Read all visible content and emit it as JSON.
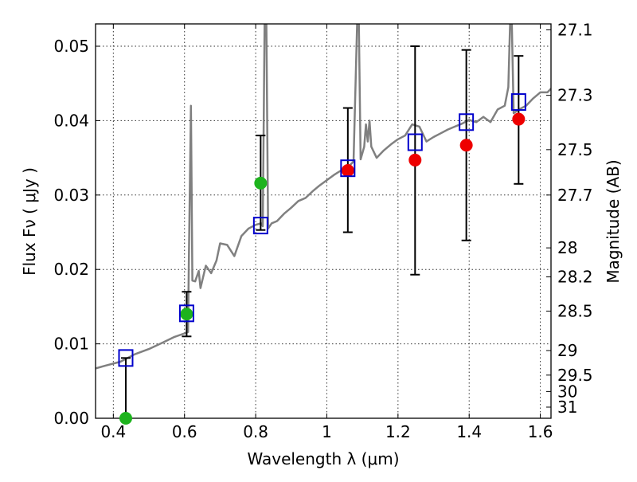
{
  "chart_data": {
    "type": "scatter",
    "xlabel": "Wavelength  λ (μm)",
    "ylabel": "Flux  Fν  ( μJy )",
    "y2label": "Magnitude (AB)",
    "xlim": [
      0.35,
      1.63
    ],
    "ylim": [
      0.0,
      0.053
    ],
    "grid": true,
    "x_ticks": [
      0.4,
      0.6,
      0.8,
      1.0,
      1.2,
      1.4,
      1.6
    ],
    "x_tick_labels": [
      "0.4",
      "0.6",
      "0.8",
      "1",
      "1.2",
      "1.4",
      "1.6"
    ],
    "y_ticks": [
      0.0,
      0.01,
      0.02,
      0.03,
      0.04,
      0.05
    ],
    "y_tick_labels": [
      "0.00",
      "0.01",
      "0.02",
      "0.03",
      "0.04",
      "0.05"
    ],
    "y2_ticks": [
      {
        "label": "27.1",
        "flux": 0.0522
      },
      {
        "label": "27.3",
        "flux": 0.0434
      },
      {
        "label": "27.5",
        "flux": 0.0361
      },
      {
        "label": "27.7",
        "flux": 0.03
      },
      {
        "label": "28",
        "flux": 0.0229
      },
      {
        "label": "28.2",
        "flux": 0.019
      },
      {
        "label": "28.5",
        "flux": 0.0144
      },
      {
        "label": "29",
        "flux": 0.0091
      },
      {
        "label": "29.5",
        "flux": 0.0058
      },
      {
        "label": "30",
        "flux": 0.0036
      },
      {
        "label": "31",
        "flux": 0.0015
      }
    ],
    "model_spectrum": {
      "color": "#808080",
      "points": [
        [
          0.35,
          0.0067
        ],
        [
          0.38,
          0.0071
        ],
        [
          0.42,
          0.0076
        ],
        [
          0.46,
          0.0086
        ],
        [
          0.5,
          0.0093
        ],
        [
          0.54,
          0.0102
        ],
        [
          0.57,
          0.0109
        ],
        [
          0.6,
          0.0114
        ],
        [
          0.61,
          0.0116
        ],
        [
          0.612,
          0.0205
        ],
        [
          0.618,
          0.042
        ],
        [
          0.622,
          0.0185
        ],
        [
          0.63,
          0.0184
        ],
        [
          0.64,
          0.0198
        ],
        [
          0.645,
          0.0175
        ],
        [
          0.66,
          0.0205
        ],
        [
          0.675,
          0.0195
        ],
        [
          0.69,
          0.0212
        ],
        [
          0.7,
          0.0235
        ],
        [
          0.72,
          0.0233
        ],
        [
          0.74,
          0.0218
        ],
        [
          0.76,
          0.0245
        ],
        [
          0.78,
          0.0255
        ],
        [
          0.8,
          0.026
        ],
        [
          0.815,
          0.0262
        ],
        [
          0.82,
          0.0258
        ],
        [
          0.825,
          0.053
        ],
        [
          0.83,
          0.0535
        ],
        [
          0.835,
          0.0255
        ],
        [
          0.845,
          0.0262
        ],
        [
          0.86,
          0.0265
        ],
        [
          0.88,
          0.0275
        ],
        [
          0.9,
          0.0283
        ],
        [
          0.92,
          0.0292
        ],
        [
          0.94,
          0.0296
        ],
        [
          0.96,
          0.0305
        ],
        [
          0.98,
          0.0313
        ],
        [
          1.0,
          0.032
        ],
        [
          1.02,
          0.0327
        ],
        [
          1.04,
          0.0333
        ],
        [
          1.06,
          0.0338
        ],
        [
          1.075,
          0.0345
        ],
        [
          1.085,
          0.053
        ],
        [
          1.09,
          0.053
        ],
        [
          1.095,
          0.0348
        ],
        [
          1.105,
          0.0365
        ],
        [
          1.11,
          0.0395
        ],
        [
          1.115,
          0.0372
        ],
        [
          1.12,
          0.04
        ],
        [
          1.125,
          0.0365
        ],
        [
          1.14,
          0.035
        ],
        [
          1.16,
          0.036
        ],
        [
          1.18,
          0.0368
        ],
        [
          1.2,
          0.0375
        ],
        [
          1.22,
          0.038
        ],
        [
          1.24,
          0.0395
        ],
        [
          1.26,
          0.0392
        ],
        [
          1.28,
          0.0372
        ],
        [
          1.3,
          0.0378
        ],
        [
          1.32,
          0.0383
        ],
        [
          1.34,
          0.0388
        ],
        [
          1.36,
          0.0392
        ],
        [
          1.38,
          0.0396
        ],
        [
          1.4,
          0.0401
        ],
        [
          1.42,
          0.0398
        ],
        [
          1.44,
          0.0405
        ],
        [
          1.46,
          0.0398
        ],
        [
          1.48,
          0.0415
        ],
        [
          1.5,
          0.042
        ],
        [
          1.51,
          0.0445
        ],
        [
          1.515,
          0.053
        ],
        [
          1.52,
          0.053
        ],
        [
          1.525,
          0.041
        ],
        [
          1.54,
          0.0415
        ],
        [
          1.56,
          0.042
        ],
        [
          1.58,
          0.043
        ],
        [
          1.6,
          0.0438
        ],
        [
          1.62,
          0.0438
        ],
        [
          1.63,
          0.0443
        ]
      ]
    },
    "series": [
      {
        "marker": "open-square",
        "color": "#0000cc",
        "points": [
          {
            "x": 0.435,
            "y": 0.0081,
            "yerr_low": 0.0081,
            "yerr_high": 0.0
          },
          {
            "x": 0.606,
            "y": 0.0141,
            "yerr_low": 0.0031,
            "yerr_high": 0.0029
          },
          {
            "x": 0.814,
            "y": 0.0259,
            "yerr_low": 0.0006,
            "yerr_high": 0.0121
          },
          {
            "x": 1.059,
            "y": 0.0336,
            "yerr_low": 0.0086,
            "yerr_high": 0.0081
          },
          {
            "x": 1.248,
            "y": 0.0371,
            "yerr_low": 0.0178,
            "yerr_high": 0.0129
          },
          {
            "x": 1.392,
            "y": 0.0398,
            "yerr_low": 0.0159,
            "yerr_high": 0.0097
          },
          {
            "x": 1.539,
            "y": 0.0425,
            "yerr_low": 0.011,
            "yerr_high": 0.0062
          }
        ]
      },
      {
        "marker": "filled-circle",
        "color": "#1db31d",
        "points": [
          {
            "x": 0.435,
            "y": 0.0
          },
          {
            "x": 0.606,
            "y": 0.014
          },
          {
            "x": 0.814,
            "y": 0.0316
          }
        ]
      },
      {
        "marker": "filled-circle",
        "color": "#ee0000",
        "points": [
          {
            "x": 1.059,
            "y": 0.0333
          },
          {
            "x": 1.248,
            "y": 0.0347
          },
          {
            "x": 1.392,
            "y": 0.0367
          },
          {
            "x": 1.539,
            "y": 0.0402
          }
        ]
      }
    ]
  }
}
